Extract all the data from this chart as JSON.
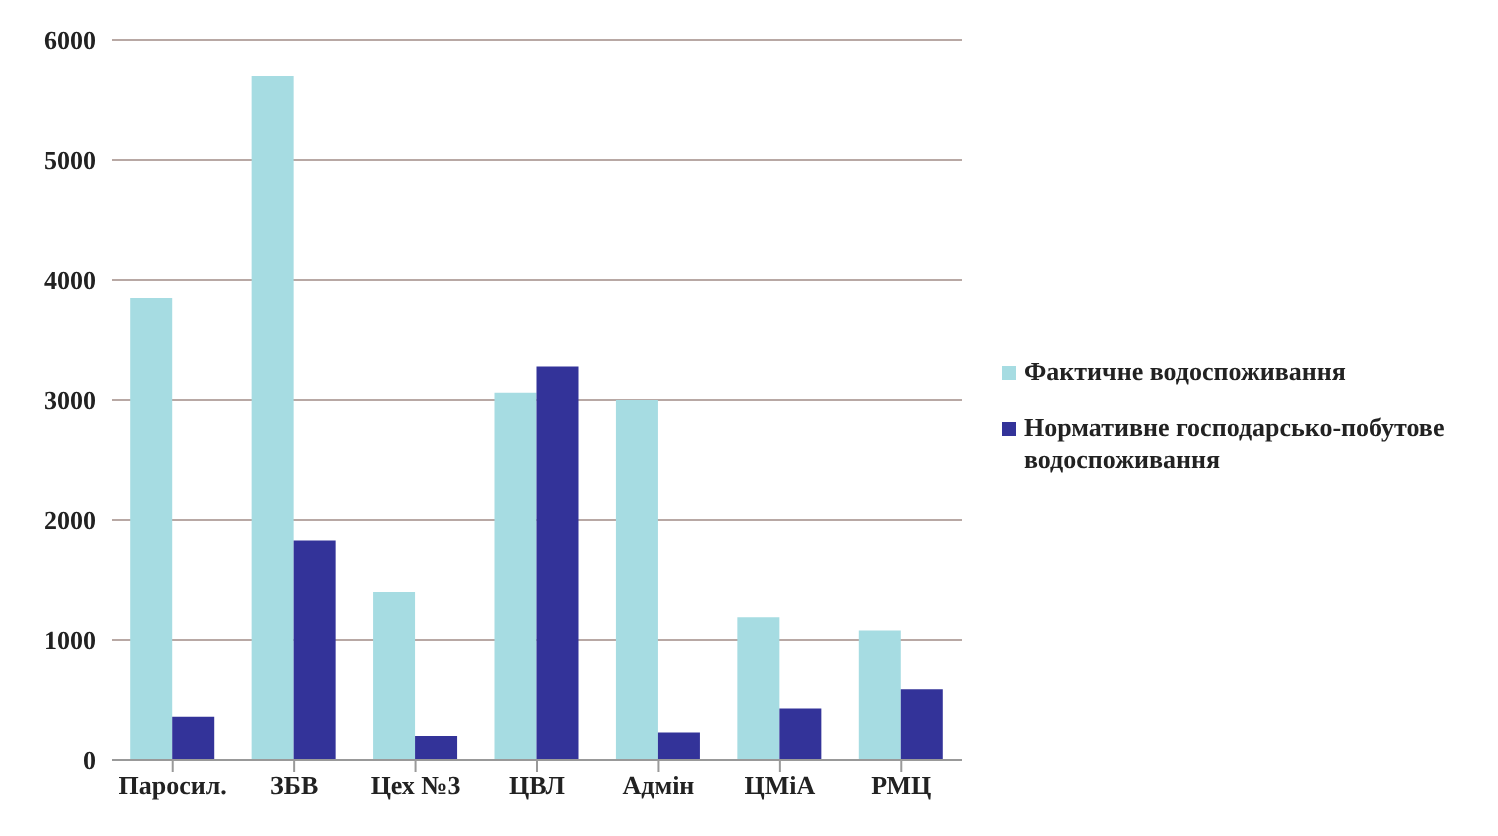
{
  "chart_data": {
    "type": "bar",
    "categories": [
      "Паросил.",
      "ЗБВ",
      "Цех №3",
      "ЦВЛ",
      "Адмін",
      "ЦМіА",
      "РМЦ"
    ],
    "series": [
      {
        "name": "Фактичне водоспоживання",
        "color": "#a6dce2",
        "values": [
          3850,
          5700,
          1400,
          3060,
          3000,
          1190,
          1080
        ]
      },
      {
        "name": "Нормативне господарсько-побутове водоспоживання",
        "color": "#333399",
        "values": [
          360,
          1830,
          200,
          3280,
          230,
          430,
          590
        ]
      }
    ],
    "ylim": [
      0,
      6000
    ],
    "yticks": [
      0,
      1000,
      2000,
      3000,
      4000,
      5000,
      6000
    ],
    "grid": "y",
    "legend": "right"
  }
}
